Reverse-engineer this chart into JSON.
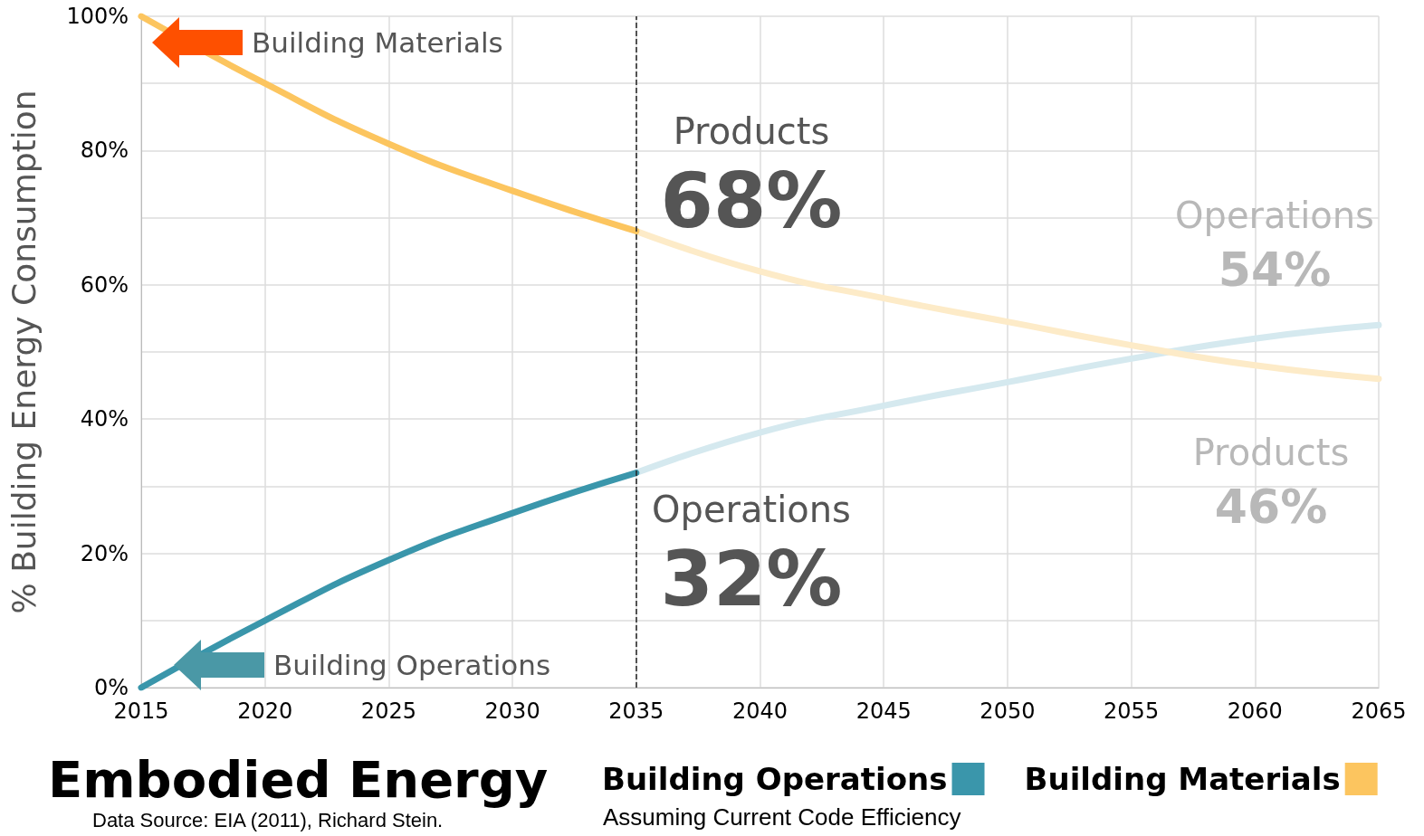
{
  "chart_data": {
    "type": "line",
    "title": "Embodied Energy",
    "ylabel": "% Building Energy Consumption",
    "xlim": [
      2015,
      2065
    ],
    "xticks": [
      2015,
      2020,
      2025,
      2030,
      2035,
      2040,
      2045,
      2050,
      2055,
      2060,
      2065
    ],
    "ylim": [
      0,
      100
    ],
    "yticks": [
      {
        "value": 0,
        "label": "0%"
      },
      {
        "value": 10,
        "label": null
      },
      {
        "value": 20,
        "label": "20%"
      },
      {
        "value": 30,
        "label": null
      },
      {
        "value": 40,
        "label": "40%"
      },
      {
        "value": 50,
        "label": null
      },
      {
        "value": 60,
        "label": "60%"
      },
      {
        "value": 70,
        "label": null
      },
      {
        "value": 80,
        "label": "80%"
      },
      {
        "value": 90,
        "label": null
      },
      {
        "value": 100,
        "label": "100%"
      }
    ],
    "grid": true,
    "legend": "bottom",
    "marker": "none",
    "line_style": "solid",
    "series": [
      {
        "name": "Building Operations",
        "color": "#3a96ab",
        "x": [
          2015,
          2020,
          2025,
          2030,
          2035
        ],
        "values": [
          0,
          10,
          19,
          26,
          32
        ]
      },
      {
        "name": "Building Materials",
        "color": "#fcc55f",
        "x": [
          2015,
          2020,
          2025,
          2030,
          2035
        ],
        "values": [
          100,
          90,
          81,
          74,
          68
        ]
      },
      {
        "color": "#d5e9ef",
        "x": [
          2035,
          2040,
          2045,
          2050,
          2055,
          2060,
          2065
        ],
        "values": [
          32,
          38,
          42,
          45.5,
          49,
          52,
          54
        ]
      },
      {
        "color": "#fdebc8",
        "x": [
          2035,
          2040,
          2045,
          2050,
          2055,
          2060,
          2065
        ],
        "values": [
          68,
          62,
          58,
          54.5,
          51,
          48,
          46
        ]
      }
    ],
    "ref_lines": [
      {
        "axis": "x",
        "value": 2035,
        "color": "#222222",
        "line_style": "dashed"
      }
    ],
    "annotations": [
      "Building Materials",
      "Building Operations",
      "Products",
      "68%",
      "Operations",
      "32%",
      "Operations",
      "54%",
      "Products",
      "46%",
      "Data Source: EIA (2011), Richard Stein.",
      "Assuming Current Code Efficiency"
    ]
  }
}
